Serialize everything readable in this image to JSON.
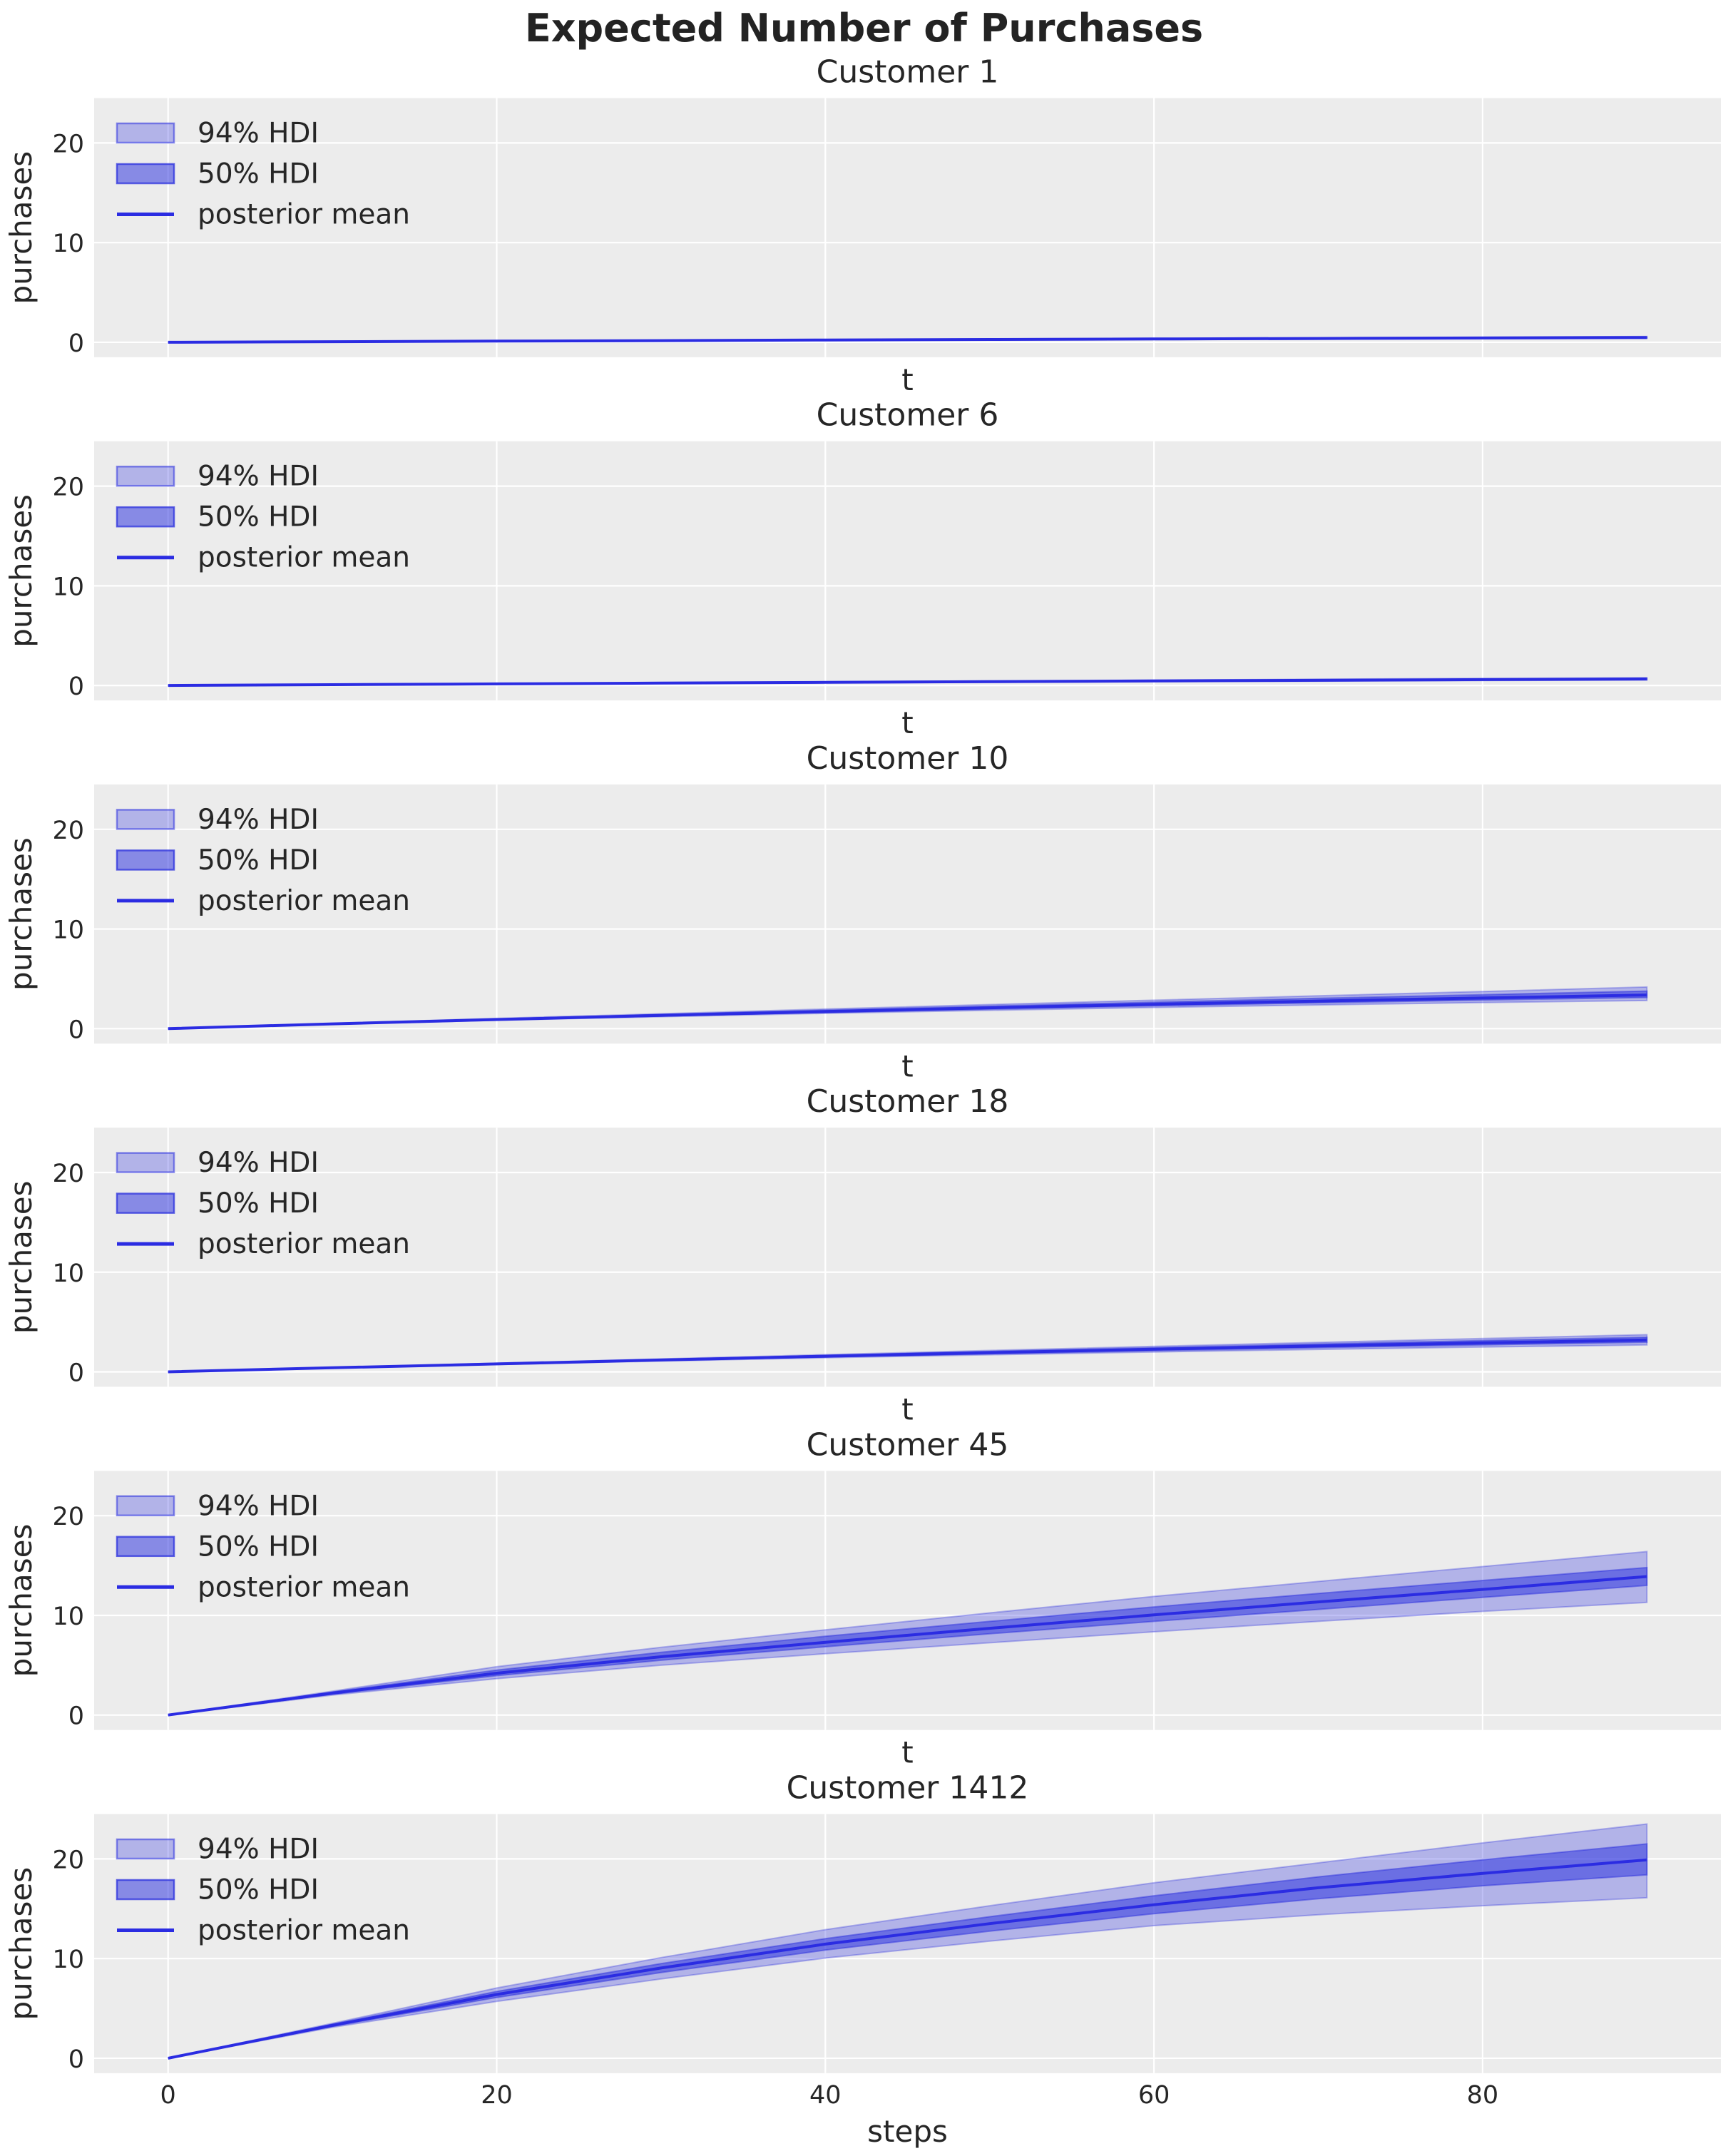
{
  "suptitle": "Expected Number of Purchases",
  "colors": {
    "figure_bg": "#ffffff",
    "axes_bg": "#ececec",
    "grid": "#ffffff",
    "text": "#262626",
    "mean_line": "#2b2ce2",
    "hdi94_fill": "rgba(43,48,222,0.30)",
    "hdi50_fill": "rgba(43,48,222,0.52)",
    "hdi94_edge": "rgba(43,48,222,0.32)",
    "hdi50_edge": "rgba(43,48,222,0.48)",
    "legend_patch94_edge": "rgba(43,48,222,0.55)",
    "legend_patch50_edge": "rgba(43,48,222,0.75)"
  },
  "chart_data": {
    "type": "line",
    "title": "Expected Number of Purchases",
    "ylabel": "purchases",
    "xlabel_inner": "t",
    "xlabel_bottom": "steps",
    "x": [
      0,
      10,
      20,
      30,
      40,
      50,
      60,
      70,
      80,
      90
    ],
    "xticks": [
      0,
      20,
      40,
      60,
      80
    ],
    "yticks": [
      0,
      10,
      20
    ],
    "xlim": [
      -4.5,
      94.5
    ],
    "ylim": [
      -1.5,
      24.5
    ],
    "grid": true,
    "legend_position": "upper left",
    "legend_entries": [
      "94% HDI",
      "50% HDI",
      "posterior mean"
    ],
    "subplots": [
      {
        "title": "Customer 1",
        "series": [
          {
            "name": "94% HDI",
            "kind": "hdi_band",
            "level": 94,
            "lower": [
              0,
              0.05,
              0.1,
              0.14,
              0.19,
              0.23,
              0.27,
              0.31,
              0.35,
              0.39
            ],
            "upper": [
              0,
              0.08,
              0.15,
              0.21,
              0.28,
              0.34,
              0.4,
              0.46,
              0.52,
              0.58
            ]
          },
          {
            "name": "50% HDI",
            "kind": "hdi_band",
            "level": 50,
            "lower": [
              0,
              0.06,
              0.11,
              0.16,
              0.21,
              0.26,
              0.31,
              0.35,
              0.4,
              0.44
            ],
            "upper": [
              0,
              0.07,
              0.13,
              0.19,
              0.25,
              0.3,
              0.36,
              0.41,
              0.46,
              0.52
            ]
          },
          {
            "name": "posterior mean",
            "kind": "line",
            "values": [
              0,
              0.06,
              0.12,
              0.17,
              0.23,
              0.28,
              0.33,
              0.38,
              0.43,
              0.48
            ]
          }
        ]
      },
      {
        "title": "Customer 6",
        "series": [
          {
            "name": "94% HDI",
            "kind": "hdi_band",
            "level": 94,
            "lower": [
              0,
              0.07,
              0.14,
              0.2,
              0.26,
              0.32,
              0.38,
              0.43,
              0.49,
              0.54
            ],
            "upper": [
              0,
              0.1,
              0.19,
              0.28,
              0.37,
              0.46,
              0.54,
              0.63,
              0.71,
              0.79
            ]
          },
          {
            "name": "50% HDI",
            "kind": "hdi_band",
            "level": 50,
            "lower": [
              0,
              0.08,
              0.15,
              0.22,
              0.29,
              0.36,
              0.42,
              0.49,
              0.55,
              0.61
            ],
            "upper": [
              0,
              0.09,
              0.17,
              0.25,
              0.33,
              0.41,
              0.48,
              0.56,
              0.63,
              0.7
            ]
          },
          {
            "name": "posterior mean",
            "kind": "line",
            "values": [
              0,
              0.08,
              0.16,
              0.24,
              0.31,
              0.38,
              0.45,
              0.52,
              0.59,
              0.65
            ]
          }
        ]
      },
      {
        "title": "Customer 10",
        "series": [
          {
            "name": "94% HDI",
            "kind": "hdi_band",
            "level": 94,
            "lower": [
              0,
              0.44,
              0.84,
              1.2,
              1.53,
              1.84,
              2.13,
              2.38,
              2.62,
              2.82
            ],
            "upper": [
              0,
              0.53,
              1.03,
              1.5,
              1.97,
              2.42,
              2.86,
              3.3,
              3.73,
              4.18
            ]
          },
          {
            "name": "50% HDI",
            "kind": "hdi_band",
            "level": 50,
            "lower": [
              0,
              0.46,
              0.88,
              1.27,
              1.63,
              1.97,
              2.29,
              2.59,
              2.87,
              3.13
            ],
            "upper": [
              0,
              0.5,
              0.97,
              1.42,
              1.85,
              2.26,
              2.66,
              3.04,
              3.41,
              3.77
            ]
          },
          {
            "name": "posterior mean",
            "kind": "line",
            "values": [
              0,
              0.48,
              0.92,
              1.33,
              1.72,
              2.09,
              2.44,
              2.77,
              3.08,
              3.38
            ]
          }
        ]
      },
      {
        "title": "Customer 18",
        "series": [
          {
            "name": "94% HDI",
            "kind": "hdi_band",
            "level": 94,
            "lower": [
              0,
              0.38,
              0.74,
              1.08,
              1.41,
              1.71,
              1.99,
              2.25,
              2.49,
              2.7
            ],
            "upper": [
              0,
              0.44,
              0.87,
              1.3,
              1.73,
              2.15,
              2.56,
              2.96,
              3.35,
              3.73
            ]
          },
          {
            "name": "50% HDI",
            "kind": "hdi_band",
            "level": 50,
            "lower": [
              0,
              0.4,
              0.77,
              1.14,
              1.49,
              1.82,
              2.13,
              2.43,
              2.71,
              2.97
            ],
            "upper": [
              0,
              0.42,
              0.83,
              1.24,
              1.65,
              2.04,
              2.42,
              2.79,
              3.14,
              3.47
            ]
          },
          {
            "name": "posterior mean",
            "kind": "line",
            "values": [
              0,
              0.41,
              0.8,
              1.19,
              1.57,
              1.93,
              2.27,
              2.6,
              2.91,
              3.2
            ]
          }
        ]
      },
      {
        "title": "Customer 45",
        "series": [
          {
            "name": "94% HDI",
            "kind": "hdi_band",
            "level": 94,
            "lower": [
              0,
              2.0,
              3.65,
              5.0,
              6.15,
              7.25,
              8.35,
              9.4,
              10.4,
              11.3
            ],
            "upper": [
              0,
              2.4,
              4.85,
              6.8,
              8.55,
              10.25,
              11.9,
              13.4,
              14.9,
              16.4
            ]
          },
          {
            "name": "50% HDI",
            "kind": "hdi_band",
            "level": 50,
            "lower": [
              0,
              2.1,
              3.95,
              5.5,
              6.85,
              8.15,
              9.4,
              10.6,
              11.8,
              13.0
            ],
            "upper": [
              0,
              2.3,
              4.5,
              6.3,
              7.9,
              9.4,
              10.85,
              12.2,
              13.5,
              14.8
            ]
          },
          {
            "name": "posterior mean",
            "kind": "line",
            "values": [
              0,
              2.2,
              4.2,
              5.85,
              7.3,
              8.7,
              10.05,
              11.35,
              12.6,
              13.9
            ]
          }
        ]
      },
      {
        "title": "Customer 1412",
        "series": [
          {
            "name": "94% HDI",
            "kind": "hdi_band",
            "level": 94,
            "lower": [
              0,
              3.1,
              5.7,
              7.95,
              10.05,
              11.75,
              13.3,
              14.4,
              15.3,
              16.1
            ],
            "upper": [
              0,
              3.5,
              7.05,
              10.1,
              12.9,
              15.3,
              17.6,
              19.6,
              21.6,
              23.5
            ]
          },
          {
            "name": "50% HDI",
            "kind": "hdi_band",
            "level": 50,
            "lower": [
              0,
              3.2,
              6.1,
              8.6,
              10.85,
              12.75,
              14.5,
              16.0,
              17.3,
              18.4
            ],
            "upper": [
              0,
              3.4,
              6.7,
              9.5,
              12.0,
              14.2,
              16.3,
              18.2,
              19.9,
              21.5
            ]
          },
          {
            "name": "posterior mean",
            "kind": "line",
            "values": [
              0,
              3.3,
              6.4,
              9.05,
              11.45,
              13.5,
              15.4,
              17.1,
              18.55,
              19.9
            ]
          }
        ]
      }
    ]
  }
}
